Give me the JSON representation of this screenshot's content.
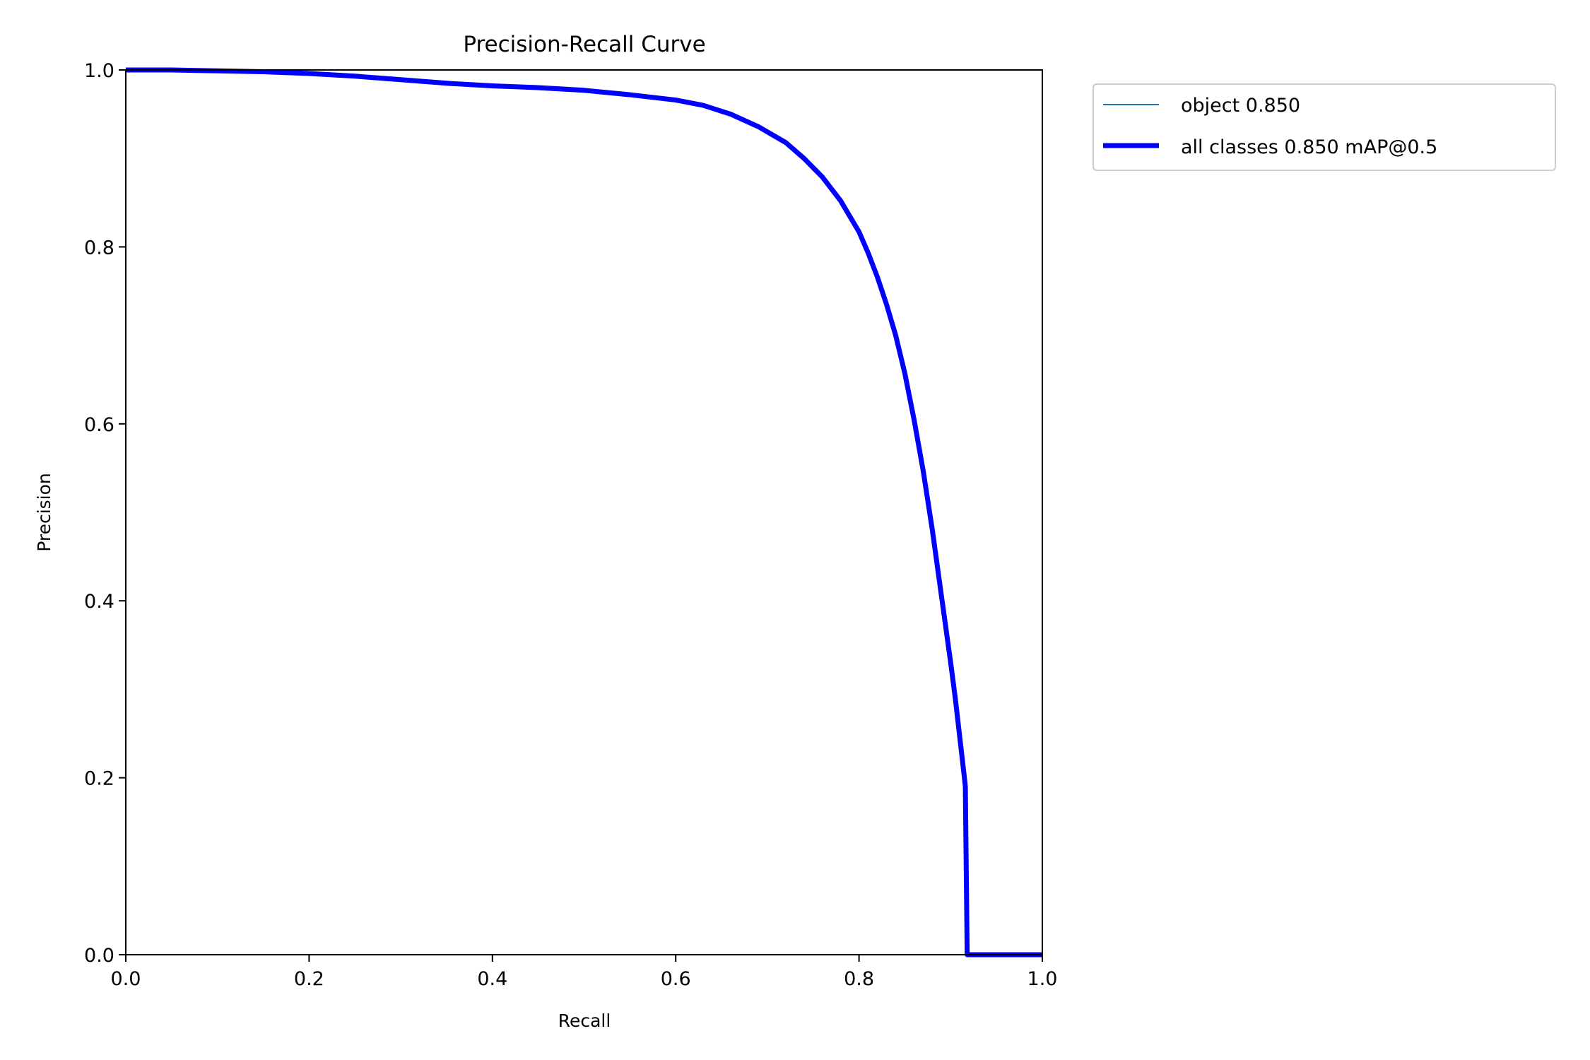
{
  "chart_data": {
    "type": "line",
    "title": "Precision-Recall Curve",
    "xlabel": "Recall",
    "ylabel": "Precision",
    "xlim": [
      0.0,
      1.0
    ],
    "ylim": [
      0.0,
      1.0
    ],
    "xticks": [
      "0.0",
      "0.2",
      "0.4",
      "0.6",
      "0.8",
      "1.0"
    ],
    "yticks": [
      "0.0",
      "0.2",
      "0.4",
      "0.6",
      "0.8",
      "1.0"
    ],
    "grid": false,
    "legend_position": "outside-upper-right",
    "series": [
      {
        "name": "object 0.850",
        "color": "#1f77b4",
        "style": "thin",
        "x": [
          0.0,
          0.05,
          0.1,
          0.15,
          0.2,
          0.25,
          0.3,
          0.35,
          0.4,
          0.45,
          0.5,
          0.55,
          0.6,
          0.63,
          0.66,
          0.69,
          0.72,
          0.74,
          0.76,
          0.78,
          0.8,
          0.81,
          0.82,
          0.83,
          0.84,
          0.85,
          0.86,
          0.87,
          0.88,
          0.89,
          0.9,
          0.905,
          0.91,
          0.915,
          0.916,
          0.918,
          0.95,
          1.0
        ],
        "y": [
          1.0,
          1.0,
          0.999,
          0.998,
          0.996,
          0.993,
          0.989,
          0.985,
          0.982,
          0.98,
          0.977,
          0.972,
          0.966,
          0.96,
          0.95,
          0.936,
          0.918,
          0.9,
          0.879,
          0.852,
          0.817,
          0.793,
          0.766,
          0.735,
          0.7,
          0.657,
          0.605,
          0.547,
          0.48,
          0.405,
          0.33,
          0.29,
          0.245,
          0.2,
          0.19,
          0.0,
          0.0,
          0.0
        ]
      },
      {
        "name": "all classes 0.850 mAP@0.5",
        "color": "#0000ff",
        "style": "thick",
        "x": [
          0.0,
          0.05,
          0.1,
          0.15,
          0.2,
          0.25,
          0.3,
          0.35,
          0.4,
          0.45,
          0.5,
          0.55,
          0.6,
          0.63,
          0.66,
          0.69,
          0.72,
          0.74,
          0.76,
          0.78,
          0.8,
          0.81,
          0.82,
          0.83,
          0.84,
          0.85,
          0.86,
          0.87,
          0.88,
          0.89,
          0.9,
          0.905,
          0.91,
          0.915,
          0.916,
          0.918,
          0.95,
          1.0
        ],
        "y": [
          1.0,
          1.0,
          0.999,
          0.998,
          0.996,
          0.993,
          0.989,
          0.985,
          0.982,
          0.98,
          0.977,
          0.972,
          0.966,
          0.96,
          0.95,
          0.936,
          0.918,
          0.9,
          0.879,
          0.852,
          0.817,
          0.793,
          0.766,
          0.735,
          0.7,
          0.657,
          0.605,
          0.547,
          0.48,
          0.405,
          0.33,
          0.29,
          0.245,
          0.2,
          0.19,
          0.0,
          0.0,
          0.0
        ]
      }
    ]
  }
}
